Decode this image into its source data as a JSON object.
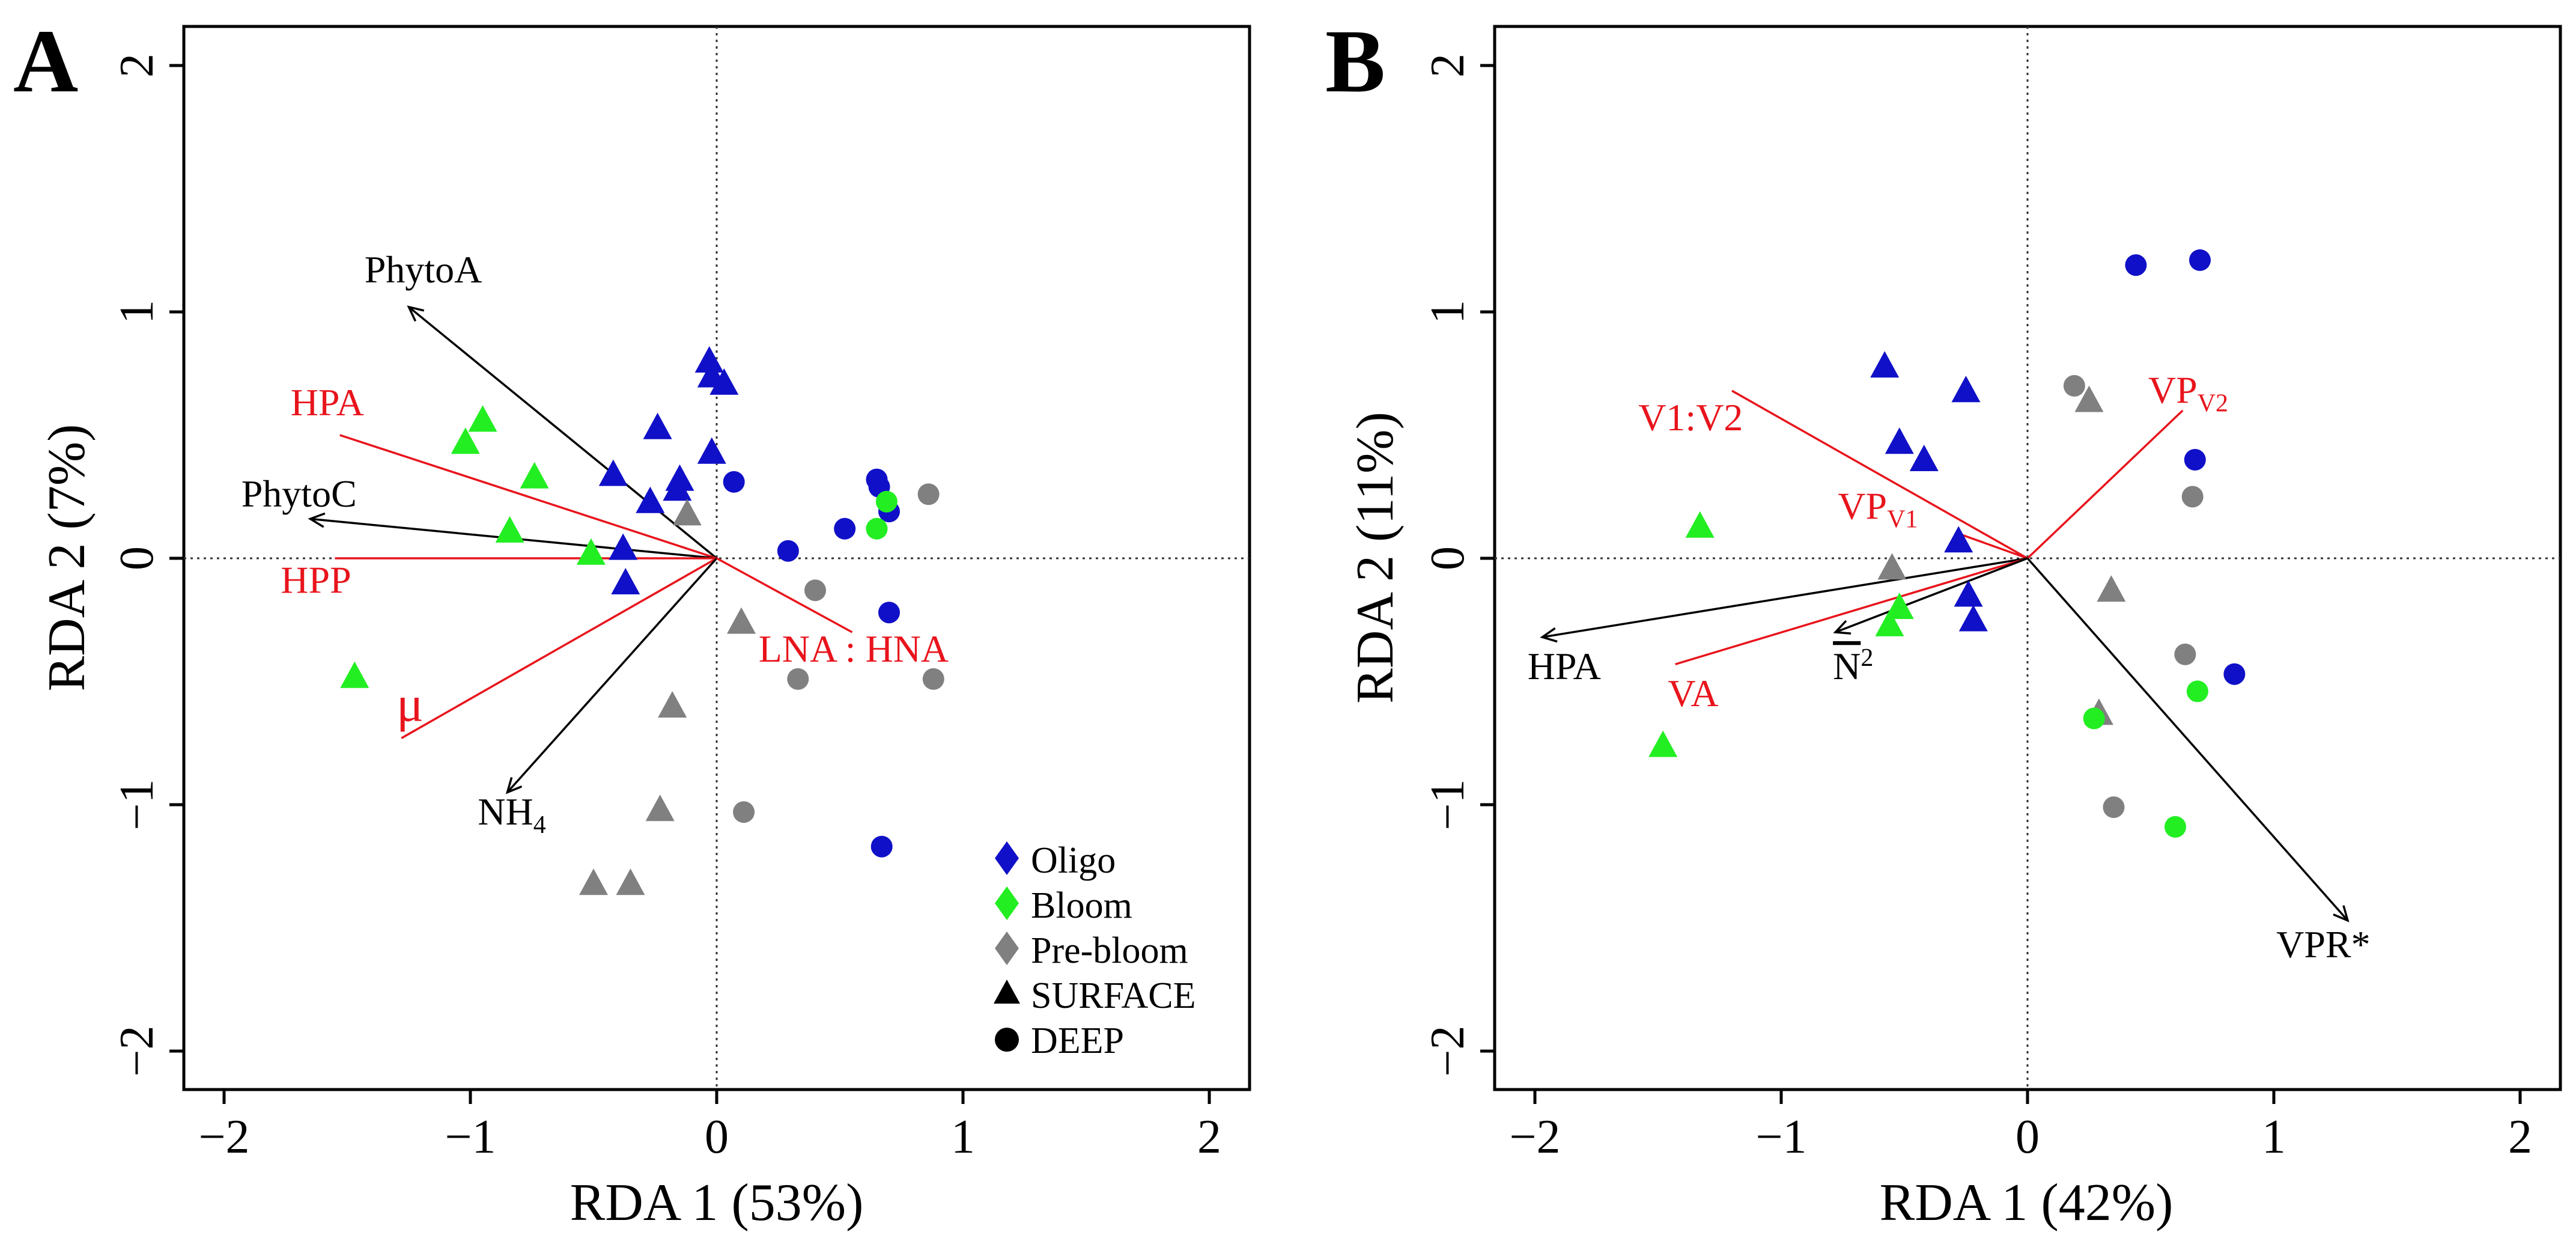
{
  "colors": {
    "oligo": "#1010c8",
    "bloom": "#22ee22",
    "prebloom": "#808080",
    "red_vector": "#e8141c",
    "black_vector": "#000000"
  },
  "chart_data": [
    {
      "panel": "A",
      "type": "scatter",
      "panel_label": "A",
      "xlabel": "RDA 1  (53%)",
      "ylabel": "RDA 2   (7%)",
      "xlim": [
        -2.15,
        2.15
      ],
      "ylim": [
        -2.15,
        2.15
      ],
      "xticks": [
        -2,
        -1,
        0,
        1,
        2
      ],
      "yticks": [
        -2,
        -1,
        0,
        1,
        2
      ],
      "xtick_labels": [
        "−2",
        "−1",
        "0",
        "1",
        "2"
      ],
      "ytick_labels": [
        "−2",
        "−1",
        "0",
        "1",
        "2"
      ],
      "legend": {
        "position": "bottom-right",
        "entries": [
          {
            "label": "Oligo",
            "shape": "diamond",
            "group": "oligo"
          },
          {
            "label": "Bloom",
            "shape": "diamond",
            "group": "bloom"
          },
          {
            "label": "Pre-bloom",
            "shape": "diamond",
            "group": "prebloom"
          },
          {
            "label": "SURFACE",
            "shape": "triangle",
            "group": "black"
          },
          {
            "label": "DEEP",
            "shape": "circle",
            "group": "black"
          }
        ]
      },
      "vectors": [
        {
          "label": "PhytoA",
          "color": "black",
          "x": -1.25,
          "y": 1.02,
          "arrow": true,
          "lx": -1.43,
          "ly": 1.12,
          "anchor": "start"
        },
        {
          "label": "HPA",
          "color": "red",
          "x": -1.53,
          "y": 0.5,
          "arrow": false,
          "lx": -1.73,
          "ly": 0.58,
          "anchor": "start"
        },
        {
          "label": "PhytoC",
          "color": "black",
          "x": -1.65,
          "y": 0.16,
          "arrow": true,
          "lx": -1.93,
          "ly": 0.21,
          "anchor": "start"
        },
        {
          "label": "HPP",
          "color": "red",
          "x": -1.55,
          "y": 0.0,
          "arrow": false,
          "lx": -1.77,
          "ly": -0.14,
          "anchor": "start"
        },
        {
          "label": "μ",
          "color": "red",
          "x": -1.28,
          "y": -0.73,
          "arrow": false,
          "lx": -1.3,
          "ly": -0.66,
          "anchor": "start"
        },
        {
          "label": "NH",
          "sub": "4",
          "color": "black",
          "x": -0.85,
          "y": -0.95,
          "arrow": true,
          "lx": -0.97,
          "ly": -1.08,
          "anchor": "start"
        },
        {
          "label": "LNA : HNA",
          "color": "red",
          "x": 0.55,
          "y": -0.3,
          "arrow": false,
          "lx": 0.17,
          "ly": -0.42,
          "anchor": "start"
        }
      ],
      "points": [
        {
          "x": -0.03,
          "y": 0.8,
          "shape": "triangle",
          "group": "oligo"
        },
        {
          "x": -0.02,
          "y": 0.74,
          "shape": "triangle",
          "group": "oligo"
        },
        {
          "x": 0.03,
          "y": 0.71,
          "shape": "triangle",
          "group": "oligo"
        },
        {
          "x": -0.24,
          "y": 0.53,
          "shape": "triangle",
          "group": "oligo"
        },
        {
          "x": -0.02,
          "y": 0.43,
          "shape": "triangle",
          "group": "oligo"
        },
        {
          "x": -0.42,
          "y": 0.34,
          "shape": "triangle",
          "group": "oligo"
        },
        {
          "x": -0.15,
          "y": 0.32,
          "shape": "triangle",
          "group": "oligo"
        },
        {
          "x": -0.16,
          "y": 0.28,
          "shape": "triangle",
          "group": "oligo"
        },
        {
          "x": -0.27,
          "y": 0.23,
          "shape": "triangle",
          "group": "oligo"
        },
        {
          "x": -0.38,
          "y": 0.04,
          "shape": "triangle",
          "group": "oligo"
        },
        {
          "x": -0.37,
          "y": -0.1,
          "shape": "triangle",
          "group": "oligo"
        },
        {
          "x": -0.95,
          "y": 0.56,
          "shape": "triangle",
          "group": "bloom"
        },
        {
          "x": -1.02,
          "y": 0.47,
          "shape": "triangle",
          "group": "bloom"
        },
        {
          "x": -0.74,
          "y": 0.33,
          "shape": "triangle",
          "group": "bloom"
        },
        {
          "x": -0.84,
          "y": 0.11,
          "shape": "triangle",
          "group": "bloom"
        },
        {
          "x": -0.51,
          "y": 0.02,
          "shape": "triangle",
          "group": "bloom"
        },
        {
          "x": -1.47,
          "y": -0.48,
          "shape": "triangle",
          "group": "bloom"
        },
        {
          "x": -0.12,
          "y": 0.18,
          "shape": "triangle",
          "group": "prebloom"
        },
        {
          "x": 0.1,
          "y": -0.26,
          "shape": "triangle",
          "group": "prebloom"
        },
        {
          "x": -0.18,
          "y": -0.6,
          "shape": "triangle",
          "group": "prebloom"
        },
        {
          "x": -0.23,
          "y": -1.02,
          "shape": "triangle",
          "group": "prebloom"
        },
        {
          "x": -0.5,
          "y": -1.32,
          "shape": "triangle",
          "group": "prebloom"
        },
        {
          "x": -0.35,
          "y": -1.32,
          "shape": "triangle",
          "group": "prebloom"
        },
        {
          "x": 0.07,
          "y": 0.31,
          "shape": "circle",
          "group": "oligo"
        },
        {
          "x": 0.29,
          "y": 0.03,
          "shape": "circle",
          "group": "oligo"
        },
        {
          "x": 0.52,
          "y": 0.12,
          "shape": "circle",
          "group": "oligo"
        },
        {
          "x": 0.65,
          "y": 0.32,
          "shape": "circle",
          "group": "oligo"
        },
        {
          "x": 0.66,
          "y": 0.29,
          "shape": "circle",
          "group": "oligo"
        },
        {
          "x": 0.7,
          "y": 0.19,
          "shape": "circle",
          "group": "oligo"
        },
        {
          "x": 0.7,
          "y": -0.22,
          "shape": "circle",
          "group": "oligo"
        },
        {
          "x": 0.67,
          "y": -1.17,
          "shape": "circle",
          "group": "oligo"
        },
        {
          "x": 0.69,
          "y": 0.23,
          "shape": "circle",
          "group": "bloom"
        },
        {
          "x": 0.65,
          "y": 0.12,
          "shape": "circle",
          "group": "bloom"
        },
        {
          "x": 0.86,
          "y": 0.26,
          "shape": "circle",
          "group": "prebloom"
        },
        {
          "x": 0.4,
          "y": -0.13,
          "shape": "circle",
          "group": "prebloom"
        },
        {
          "x": 0.33,
          "y": -0.49,
          "shape": "circle",
          "group": "prebloom"
        },
        {
          "x": 0.88,
          "y": -0.49,
          "shape": "circle",
          "group": "prebloom"
        },
        {
          "x": 0.11,
          "y": -1.03,
          "shape": "circle",
          "group": "prebloom"
        }
      ]
    },
    {
      "panel": "B",
      "type": "scatter",
      "panel_label": "B",
      "xlabel": "RDA 1  (42%)",
      "ylabel": "RDA 2  (11%)",
      "xlim": [
        -2.15,
        2.15
      ],
      "ylim": [
        -2.15,
        2.15
      ],
      "xticks": [
        -2,
        -1,
        0,
        1,
        2
      ],
      "yticks": [
        -2,
        -1,
        0,
        1,
        2
      ],
      "xtick_labels": [
        "−2",
        "−1",
        "0",
        "1",
        "2"
      ],
      "ytick_labels": [
        "−2",
        "−1",
        "0",
        "1",
        "2"
      ],
      "vectors": [
        {
          "label": "V1:V2",
          "color": "red",
          "x": -1.2,
          "y": 0.68,
          "arrow": false,
          "lx": -1.58,
          "ly": 0.52,
          "anchor": "start"
        },
        {
          "label": "VP",
          "sub": "V2",
          "color": "red",
          "x": 0.63,
          "y": 0.6,
          "arrow": false,
          "lx": 0.49,
          "ly": 0.63,
          "anchor": "start"
        },
        {
          "label": "VP",
          "sub": "V1",
          "color": "red",
          "x": -0.28,
          "y": 0.1,
          "arrow": false,
          "lx": -0.77,
          "ly": 0.16,
          "anchor": "start"
        },
        {
          "label": "HPA",
          "color": "black",
          "x": -1.97,
          "y": -0.32,
          "arrow": true,
          "lx": -2.03,
          "ly": -0.49,
          "anchor": "start"
        },
        {
          "label": "VA",
          "color": "red",
          "x": -1.43,
          "y": -0.43,
          "arrow": false,
          "lx": -1.46,
          "ly": -0.6,
          "anchor": "start"
        },
        {
          "label": "N",
          "sub": "2",
          "sup": true,
          "overline": true,
          "color": "black",
          "x": -0.78,
          "y": -0.3,
          "arrow": true,
          "lx": -0.79,
          "ly": -0.49,
          "anchor": "start"
        },
        {
          "label": "VPR*",
          "color": "black",
          "x": 1.3,
          "y": -1.47,
          "arrow": true,
          "lx": 1.01,
          "ly": -1.62,
          "anchor": "start"
        }
      ],
      "points": [
        {
          "x": -0.58,
          "y": 0.78,
          "shape": "triangle",
          "group": "oligo"
        },
        {
          "x": -0.25,
          "y": 0.68,
          "shape": "triangle",
          "group": "oligo"
        },
        {
          "x": -0.52,
          "y": 0.47,
          "shape": "triangle",
          "group": "oligo"
        },
        {
          "x": -0.42,
          "y": 0.4,
          "shape": "triangle",
          "group": "oligo"
        },
        {
          "x": -0.28,
          "y": 0.07,
          "shape": "triangle",
          "group": "oligo"
        },
        {
          "x": -0.24,
          "y": -0.15,
          "shape": "triangle",
          "group": "oligo"
        },
        {
          "x": -0.22,
          "y": -0.25,
          "shape": "triangle",
          "group": "oligo"
        },
        {
          "x": -1.33,
          "y": 0.13,
          "shape": "triangle",
          "group": "bloom"
        },
        {
          "x": -0.52,
          "y": -0.2,
          "shape": "triangle",
          "group": "bloom"
        },
        {
          "x": -0.56,
          "y": -0.27,
          "shape": "triangle",
          "group": "bloom"
        },
        {
          "x": -1.48,
          "y": -0.76,
          "shape": "triangle",
          "group": "bloom"
        },
        {
          "x": -0.55,
          "y": -0.04,
          "shape": "triangle",
          "group": "prebloom"
        },
        {
          "x": 0.25,
          "y": 0.64,
          "shape": "triangle",
          "group": "prebloom"
        },
        {
          "x": 0.34,
          "y": -0.13,
          "shape": "triangle",
          "group": "prebloom"
        },
        {
          "x": 0.29,
          "y": -0.63,
          "shape": "triangle",
          "group": "prebloom"
        },
        {
          "x": 0.44,
          "y": 1.19,
          "shape": "circle",
          "group": "oligo"
        },
        {
          "x": 0.7,
          "y": 1.21,
          "shape": "circle",
          "group": "oligo"
        },
        {
          "x": 0.68,
          "y": 0.4,
          "shape": "circle",
          "group": "oligo"
        },
        {
          "x": 0.84,
          "y": -0.47,
          "shape": "circle",
          "group": "oligo"
        },
        {
          "x": 0.27,
          "y": -0.65,
          "shape": "circle",
          "group": "bloom"
        },
        {
          "x": 0.69,
          "y": -0.54,
          "shape": "circle",
          "group": "bloom"
        },
        {
          "x": 0.6,
          "y": -1.09,
          "shape": "circle",
          "group": "bloom"
        },
        {
          "x": 0.19,
          "y": 0.7,
          "shape": "circle",
          "group": "prebloom"
        },
        {
          "x": 0.67,
          "y": 0.25,
          "shape": "circle",
          "group": "prebloom"
        },
        {
          "x": 0.64,
          "y": -0.39,
          "shape": "circle",
          "group": "prebloom"
        },
        {
          "x": 0.35,
          "y": -1.01,
          "shape": "circle",
          "group": "prebloom"
        }
      ]
    }
  ]
}
